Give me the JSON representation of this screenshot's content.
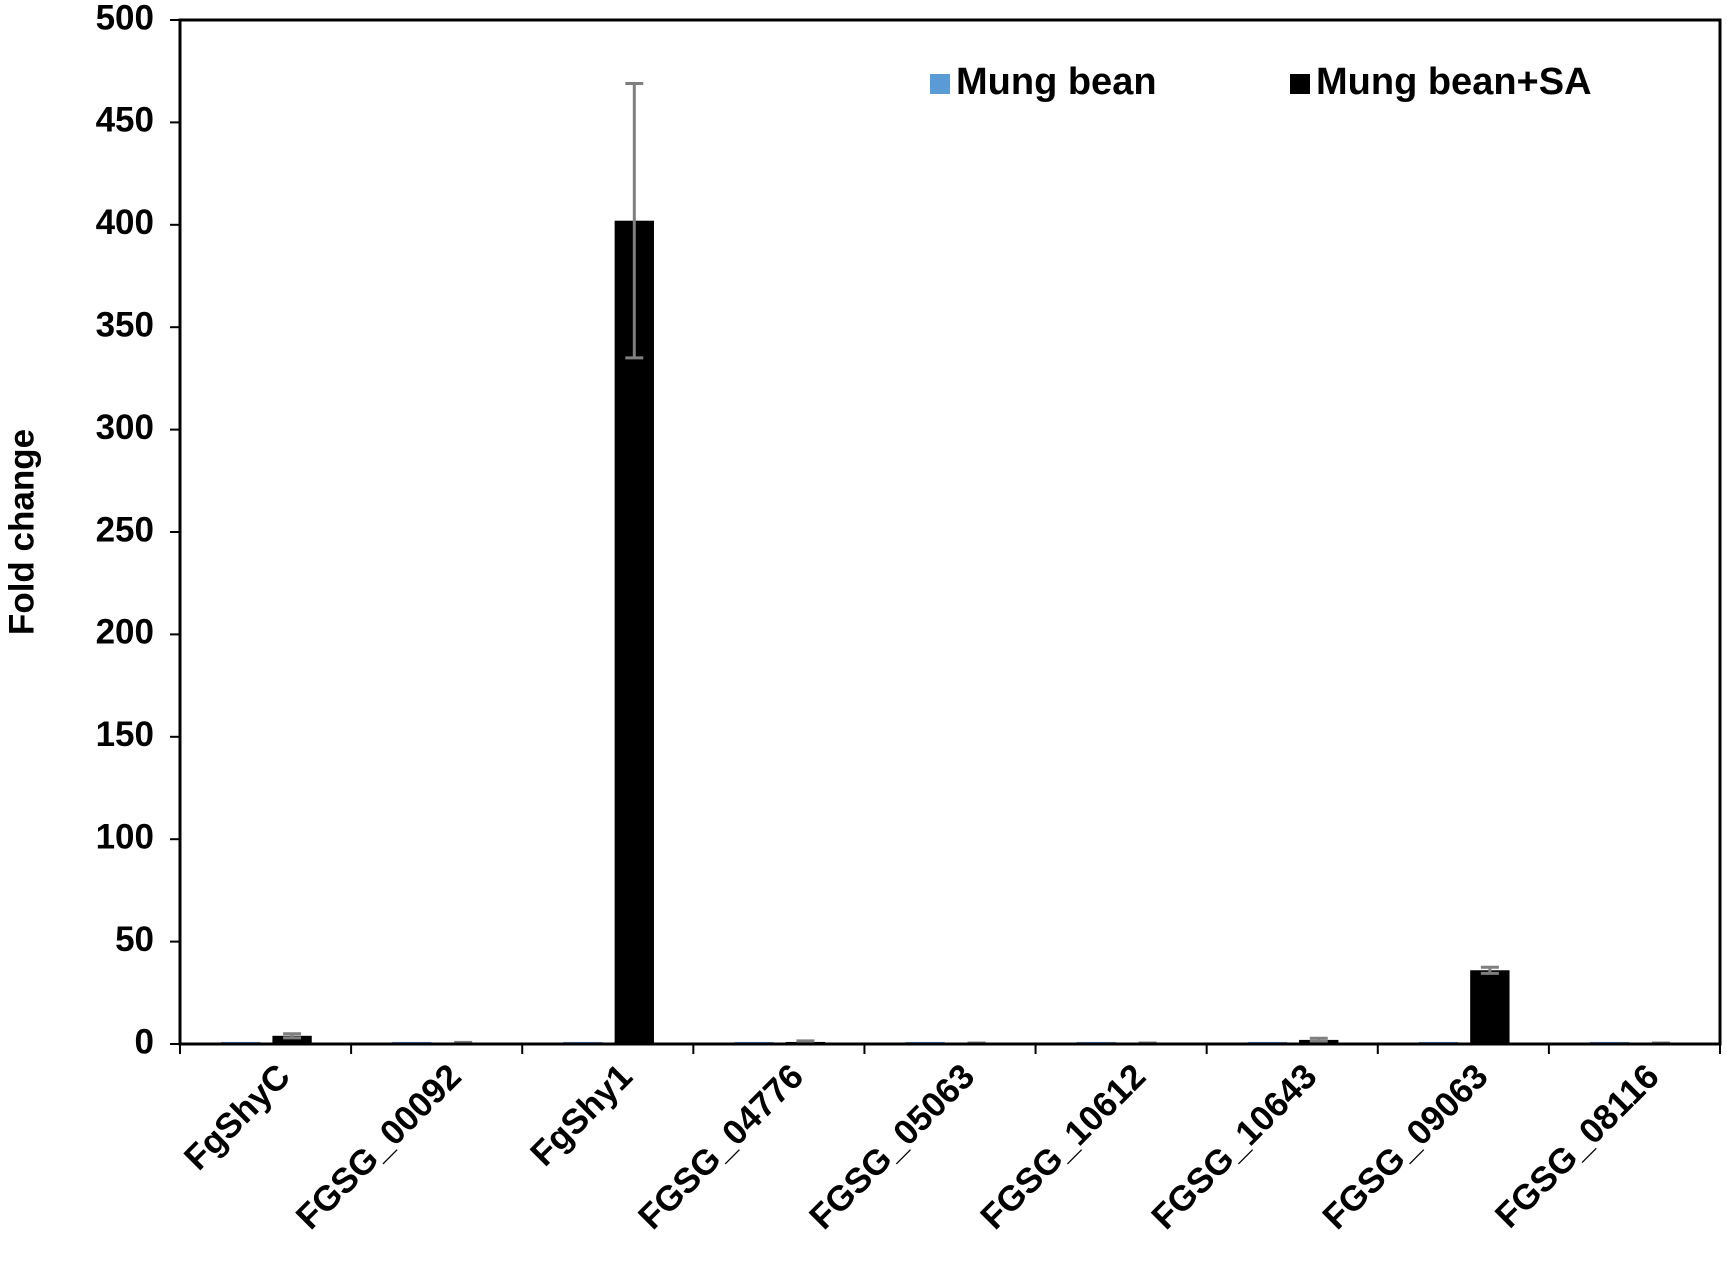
{
  "chart_data": {
    "type": "bar",
    "y_label": "Fold change",
    "categories": [
      "FgShyC",
      "FGSG_00092",
      "FgShy1",
      "FGSG_04776",
      "FGSG_05063",
      "FGSG_10612",
      "FGSG_10643",
      "FGSG_09063",
      "FGSG_08116"
    ],
    "series": [
      {
        "name": "Mung bean",
        "color": "#5b9bd5",
        "values": [
          1,
          1,
          1,
          1,
          1,
          1,
          1,
          1,
          1
        ]
      },
      {
        "name": "Mung bean+SA",
        "color": "#000000",
        "values": [
          4,
          0.5,
          402,
          1,
          0.3,
          0.3,
          2,
          36,
          0.3
        ],
        "errors": [
          1,
          0.3,
          67,
          0.5,
          0.2,
          0.2,
          0.8,
          1.5,
          0.2
        ],
        "error_color": "#7f7f7f"
      }
    ],
    "ylim": [
      0,
      500
    ],
    "yticks": [
      0,
      50,
      100,
      150,
      200,
      250,
      300,
      350,
      400,
      450,
      500
    ],
    "grid": false,
    "legend": "top-right"
  }
}
